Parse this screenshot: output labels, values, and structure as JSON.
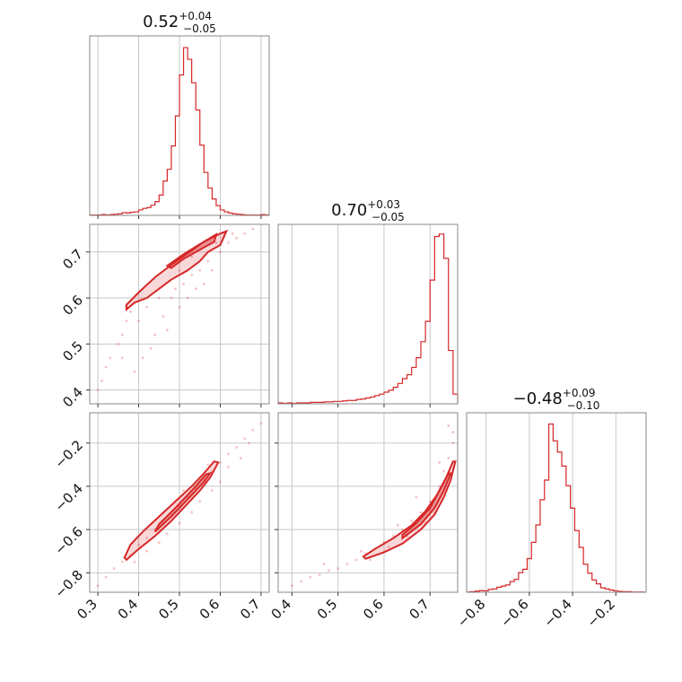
{
  "chart_data": {
    "type": "scatter",
    "kind": "corner-plot",
    "color": "#d62728",
    "grid": true,
    "parameters": [
      {
        "title": {
          "median": "0.52",
          "plus": "+0.04",
          "minus": "−0.05"
        },
        "range": [
          0.28,
          0.72
        ],
        "ticks": [
          {
            "v": 0.3,
            "label": "0.3"
          },
          {
            "v": 0.4,
            "label": "0.4"
          },
          {
            "v": 0.5,
            "label": "0.5"
          },
          {
            "v": 0.6,
            "label": "0.6"
          },
          {
            "v": 0.7,
            "label": "0.7"
          }
        ]
      },
      {
        "title": {
          "median": "0.70",
          "plus": "+0.03",
          "minus": "−0.05"
        },
        "range": [
          0.37,
          0.76
        ],
        "ticks": [
          {
            "v": 0.4,
            "label": "0.4"
          },
          {
            "v": 0.5,
            "label": "0.5"
          },
          {
            "v": 0.6,
            "label": "0.6"
          },
          {
            "v": 0.7,
            "label": "0.7"
          }
        ]
      },
      {
        "title": {
          "median": "−0.48",
          "plus": "+0.09",
          "minus": "−0.10"
        },
        "range": [
          -0.89,
          -0.06
        ],
        "ticks": [
          {
            "v": -0.8,
            "label": "−0.8"
          },
          {
            "v": -0.6,
            "label": "−0.6"
          },
          {
            "v": -0.4,
            "label": "−0.4"
          },
          {
            "v": -0.2,
            "label": "−0.2"
          }
        ]
      }
    ],
    "histograms": [
      {
        "edges": [
          0.28,
          0.29,
          0.3,
          0.31,
          0.32,
          0.33,
          0.34,
          0.35,
          0.36,
          0.37,
          0.38,
          0.39,
          0.4,
          0.41,
          0.42,
          0.43,
          0.44,
          0.45,
          0.46,
          0.47,
          0.48,
          0.49,
          0.5,
          0.51,
          0.52,
          0.53,
          0.54,
          0.55,
          0.56,
          0.57,
          0.58,
          0.59,
          0.6,
          0.61,
          0.62,
          0.63,
          0.64,
          0.65,
          0.66,
          0.67,
          0.68,
          0.69,
          0.7,
          0.71,
          0.72
        ],
        "counts": [
          1,
          1,
          1,
          2,
          1,
          2,
          3,
          4,
          7,
          6,
          8,
          9,
          14,
          18,
          20,
          26,
          35,
          52,
          88,
          118,
          178,
          255,
          360,
          430,
          400,
          340,
          270,
          180,
          110,
          70,
          42,
          25,
          14,
          9,
          6,
          4,
          3,
          2,
          1,
          1,
          1,
          1,
          2,
          1
        ],
        "ymax": 460
      },
      {
        "edges": [
          0.37,
          0.38,
          0.39,
          0.4,
          0.41,
          0.42,
          0.43,
          0.44,
          0.45,
          0.46,
          0.47,
          0.48,
          0.49,
          0.5,
          0.51,
          0.52,
          0.53,
          0.54,
          0.55,
          0.56,
          0.57,
          0.58,
          0.59,
          0.6,
          0.61,
          0.62,
          0.63,
          0.64,
          0.65,
          0.66,
          0.67,
          0.68,
          0.69,
          0.7,
          0.71,
          0.72,
          0.73,
          0.74,
          0.75,
          0.76
        ],
        "counts": [
          2,
          1,
          2,
          1,
          2,
          2,
          2,
          3,
          3,
          3,
          4,
          4,
          5,
          5,
          6,
          7,
          7,
          9,
          10,
          12,
          14,
          17,
          20,
          24,
          28,
          34,
          42,
          52,
          60,
          75,
          95,
          128,
          170,
          255,
          345,
          350,
          300,
          110,
          20
        ],
        "ymax": 370
      },
      {
        "edges": [
          -0.89,
          -0.87,
          -0.85,
          -0.83,
          -0.81,
          -0.79,
          -0.77,
          -0.75,
          -0.73,
          -0.71,
          -0.69,
          -0.67,
          -0.65,
          -0.63,
          -0.61,
          -0.59,
          -0.57,
          -0.55,
          -0.53,
          -0.51,
          -0.49,
          -0.47,
          -0.45,
          -0.43,
          -0.41,
          -0.39,
          -0.37,
          -0.35,
          -0.33,
          -0.31,
          -0.29,
          -0.27,
          -0.25,
          -0.23,
          -0.21,
          -0.19,
          -0.17,
          -0.15,
          -0.13,
          -0.11,
          -0.09,
          -0.07
        ],
        "counts": [
          1,
          2,
          4,
          6,
          5,
          10,
          12,
          18,
          22,
          26,
          38,
          46,
          70,
          82,
          120,
          178,
          240,
          330,
          400,
          600,
          540,
          500,
          450,
          380,
          300,
          220,
          160,
          100,
          68,
          44,
          30,
          16,
          12,
          8,
          5,
          3,
          2,
          2,
          1,
          1,
          1
        ],
        "ymax": 640
      }
    ],
    "pairs": [
      {
        "row": 1,
        "col": 0,
        "outer_contour": [
          [
            0.37,
            0.585
          ],
          [
            0.4,
            0.612
          ],
          [
            0.44,
            0.645
          ],
          [
            0.48,
            0.672
          ],
          [
            0.52,
            0.697
          ],
          [
            0.56,
            0.722
          ],
          [
            0.6,
            0.74
          ],
          [
            0.615,
            0.745
          ],
          [
            0.6,
            0.715
          ],
          [
            0.57,
            0.7
          ],
          [
            0.55,
            0.68
          ],
          [
            0.52,
            0.66
          ],
          [
            0.48,
            0.64
          ],
          [
            0.45,
            0.62
          ],
          [
            0.42,
            0.6
          ],
          [
            0.39,
            0.59
          ],
          [
            0.37,
            0.575
          ]
        ],
        "inner_contour": [
          [
            0.47,
            0.67
          ],
          [
            0.51,
            0.695
          ],
          [
            0.55,
            0.717
          ],
          [
            0.59,
            0.738
          ],
          [
            0.585,
            0.722
          ],
          [
            0.55,
            0.705
          ],
          [
            0.51,
            0.685
          ],
          [
            0.48,
            0.665
          ]
        ],
        "points": [
          [
            0.3,
            0.4
          ],
          [
            0.31,
            0.42
          ],
          [
            0.32,
            0.45
          ],
          [
            0.33,
            0.47
          ],
          [
            0.35,
            0.5
          ],
          [
            0.36,
            0.52
          ],
          [
            0.37,
            0.55
          ],
          [
            0.38,
            0.57
          ],
          [
            0.4,
            0.55
          ],
          [
            0.42,
            0.58
          ],
          [
            0.44,
            0.52
          ],
          [
            0.45,
            0.6
          ],
          [
            0.46,
            0.56
          ],
          [
            0.48,
            0.6
          ],
          [
            0.49,
            0.62
          ],
          [
            0.5,
            0.58
          ],
          [
            0.51,
            0.63
          ],
          [
            0.52,
            0.6
          ],
          [
            0.53,
            0.65
          ],
          [
            0.54,
            0.62
          ],
          [
            0.55,
            0.66
          ],
          [
            0.56,
            0.63
          ],
          [
            0.57,
            0.68
          ],
          [
            0.58,
            0.66
          ],
          [
            0.6,
            0.7
          ],
          [
            0.62,
            0.72
          ],
          [
            0.63,
            0.74
          ],
          [
            0.64,
            0.73
          ],
          [
            0.66,
            0.74
          ],
          [
            0.68,
            0.75
          ],
          [
            0.47,
            0.53
          ],
          [
            0.43,
            0.49
          ],
          [
            0.41,
            0.47
          ],
          [
            0.39,
            0.44
          ],
          [
            0.36,
            0.47
          ],
          [
            0.5,
            0.66
          ],
          [
            0.53,
            0.69
          ],
          [
            0.56,
            0.71
          ],
          [
            0.59,
            0.72
          ],
          [
            0.61,
            0.74
          ]
        ]
      },
      {
        "row": 2,
        "col": 0,
        "outer_contour": [
          [
            0.37,
            -0.74
          ],
          [
            0.4,
            -0.69
          ],
          [
            0.44,
            -0.63
          ],
          [
            0.48,
            -0.56
          ],
          [
            0.52,
            -0.48
          ],
          [
            0.55,
            -0.42
          ],
          [
            0.575,
            -0.36
          ],
          [
            0.595,
            -0.29
          ],
          [
            0.585,
            -0.285
          ],
          [
            0.56,
            -0.34
          ],
          [
            0.53,
            -0.4
          ],
          [
            0.49,
            -0.47
          ],
          [
            0.45,
            -0.54
          ],
          [
            0.41,
            -0.61
          ],
          [
            0.38,
            -0.67
          ],
          [
            0.365,
            -0.73
          ]
        ],
        "inner_contour": [
          [
            0.44,
            -0.61
          ],
          [
            0.48,
            -0.54
          ],
          [
            0.52,
            -0.46
          ],
          [
            0.56,
            -0.38
          ],
          [
            0.575,
            -0.34
          ],
          [
            0.565,
            -0.345
          ],
          [
            0.53,
            -0.42
          ],
          [
            0.49,
            -0.5
          ],
          [
            0.45,
            -0.575
          ]
        ],
        "points": [
          [
            0.3,
            -0.86
          ],
          [
            0.32,
            -0.82
          ],
          [
            0.34,
            -0.78
          ],
          [
            0.36,
            -0.75
          ],
          [
            0.38,
            -0.72
          ],
          [
            0.4,
            -0.67
          ],
          [
            0.42,
            -0.64
          ],
          [
            0.44,
            -0.6
          ],
          [
            0.46,
            -0.57
          ],
          [
            0.48,
            -0.53
          ],
          [
            0.5,
            -0.49
          ],
          [
            0.52,
            -0.45
          ],
          [
            0.54,
            -0.41
          ],
          [
            0.56,
            -0.37
          ],
          [
            0.58,
            -0.33
          ],
          [
            0.6,
            -0.29
          ],
          [
            0.62,
            -0.25
          ],
          [
            0.64,
            -0.22
          ],
          [
            0.66,
            -0.18
          ],
          [
            0.68,
            -0.14
          ],
          [
            0.7,
            -0.11
          ],
          [
            0.45,
            -0.66
          ],
          [
            0.47,
            -0.62
          ],
          [
            0.5,
            -0.57
          ],
          [
            0.53,
            -0.52
          ],
          [
            0.55,
            -0.47
          ],
          [
            0.58,
            -0.42
          ],
          [
            0.6,
            -0.38
          ],
          [
            0.62,
            -0.31
          ],
          [
            0.42,
            -0.7
          ],
          [
            0.39,
            -0.75
          ],
          [
            0.65,
            -0.27
          ],
          [
            0.67,
            -0.2
          ],
          [
            0.51,
            -0.42
          ],
          [
            0.57,
            -0.3
          ]
        ]
      },
      {
        "row": 2,
        "col": 1,
        "outer_contour": [
          [
            0.56,
            -0.735
          ],
          [
            0.6,
            -0.705
          ],
          [
            0.64,
            -0.665
          ],
          [
            0.68,
            -0.6
          ],
          [
            0.71,
            -0.53
          ],
          [
            0.73,
            -0.45
          ],
          [
            0.745,
            -0.37
          ],
          [
            0.755,
            -0.285
          ],
          [
            0.75,
            -0.285
          ],
          [
            0.735,
            -0.36
          ],
          [
            0.715,
            -0.44
          ],
          [
            0.69,
            -0.515
          ],
          [
            0.66,
            -0.58
          ],
          [
            0.62,
            -0.64
          ],
          [
            0.58,
            -0.69
          ],
          [
            0.555,
            -0.725
          ]
        ],
        "inner_contour": [
          [
            0.64,
            -0.64
          ],
          [
            0.68,
            -0.575
          ],
          [
            0.71,
            -0.5
          ],
          [
            0.73,
            -0.42
          ],
          [
            0.745,
            -0.34
          ],
          [
            0.74,
            -0.34
          ],
          [
            0.72,
            -0.42
          ],
          [
            0.7,
            -0.5
          ],
          [
            0.67,
            -0.57
          ],
          [
            0.64,
            -0.625
          ]
        ],
        "points": [
          [
            0.4,
            -0.86
          ],
          [
            0.42,
            -0.84
          ],
          [
            0.44,
            -0.82
          ],
          [
            0.46,
            -0.81
          ],
          [
            0.48,
            -0.79
          ],
          [
            0.5,
            -0.78
          ],
          [
            0.52,
            -0.76
          ],
          [
            0.54,
            -0.74
          ],
          [
            0.56,
            -0.71
          ],
          [
            0.58,
            -0.69
          ],
          [
            0.6,
            -0.66
          ],
          [
            0.62,
            -0.63
          ],
          [
            0.64,
            -0.6
          ],
          [
            0.66,
            -0.56
          ],
          [
            0.68,
            -0.52
          ],
          [
            0.7,
            -0.47
          ],
          [
            0.72,
            -0.4
          ],
          [
            0.73,
            -0.33
          ],
          [
            0.74,
            -0.27
          ],
          [
            0.75,
            -0.2
          ],
          [
            0.75,
            -0.15
          ],
          [
            0.74,
            -0.12
          ],
          [
            0.55,
            -0.7
          ],
          [
            0.61,
            -0.68
          ],
          [
            0.65,
            -0.63
          ],
          [
            0.69,
            -0.57
          ],
          [
            0.71,
            -0.52
          ],
          [
            0.67,
            -0.45
          ],
          [
            0.72,
            -0.29
          ],
          [
            0.47,
            -0.76
          ],
          [
            0.57,
            -0.74
          ],
          [
            0.63,
            -0.58
          ]
        ]
      }
    ]
  }
}
